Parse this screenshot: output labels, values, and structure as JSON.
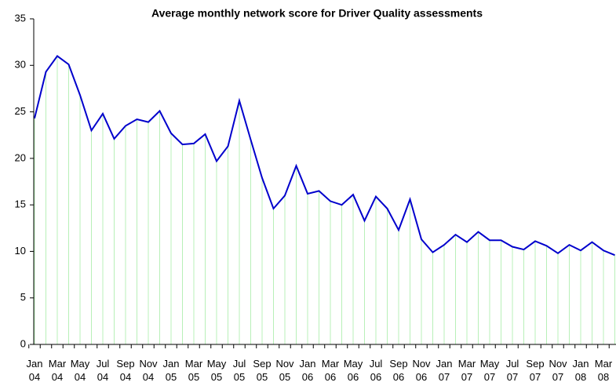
{
  "chart_data": {
    "type": "line",
    "title": "Average monthly network score for Driver Quality assessments",
    "categories": [
      "Jan 04",
      null,
      "Mar 04",
      null,
      "May 04",
      null,
      "Jul 04",
      null,
      "Sep 04",
      null,
      "Nov 04",
      null,
      "Jan 05",
      null,
      "Mar 05",
      null,
      "May 05",
      null,
      "Jul 05",
      null,
      "Sep 05",
      null,
      "Nov 05",
      null,
      "Jan 06",
      null,
      "Mar 06",
      null,
      "May 06",
      null,
      "Jul 06",
      null,
      "Sep 06",
      null,
      "Nov 06",
      null,
      "Jan 07",
      null,
      "Mar 07",
      null,
      "May 07",
      null,
      "Jul 07",
      null,
      "Sep 07",
      null,
      "Nov 07",
      null,
      "Jan 08",
      null,
      "Mar 08",
      null
    ],
    "series": [
      {
        "color": "#0000cc",
        "drop_line_color": "#b8f0b8",
        "values": [
          24.3,
          29.3,
          31,
          30.1,
          26.8,
          23,
          24.8,
          22.1,
          23.5,
          24.2,
          23.9,
          25.1,
          22.7,
          21.5,
          21.6,
          22.6,
          19.7,
          21.3,
          26.2,
          22,
          17.9,
          14.6,
          16,
          19.2,
          16.2,
          16.5,
          15.4,
          15,
          16.1,
          13.3,
          15.9,
          14.6,
          12.3,
          15.6,
          11.3,
          9.9,
          10.7,
          11.8,
          11,
          12.1,
          11.2,
          11.2,
          10.5,
          10.2,
          11.1,
          10.6,
          9.8,
          10.7,
          10.1,
          11,
          10.1,
          9.6
        ]
      }
    ],
    "ylim": [
      0,
      35
    ],
    "yticks": [
      0,
      5,
      10,
      15,
      20,
      25,
      30,
      35
    ],
    "grid": false
  }
}
